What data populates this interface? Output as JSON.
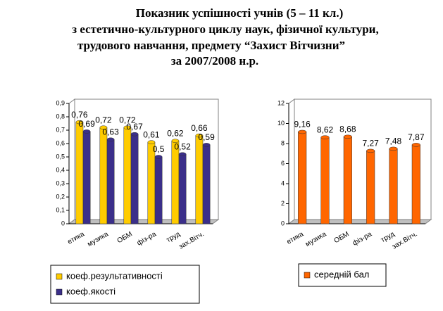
{
  "title": [
    "Показник успішності учнів (5 – 11 кл.)",
    "з естетично-культурного циклу наук, фізичної культури,",
    "трудового навчання, предмету “Захист Вітчизни”",
    "за 2007/2008 н.р."
  ],
  "chart_data": [
    {
      "type": "bar",
      "categories": [
        "етика",
        "музика",
        "ОБМ",
        "фіз-ра",
        "труд",
        "зах.Вітч."
      ],
      "series": [
        {
          "name": "коеф.результативності",
          "color": "#ffcc00",
          "values": [
            0.76,
            0.72,
            0.72,
            0.61,
            0.62,
            0.66
          ],
          "value_labels": [
            "0,76",
            "0,72",
            "0,72",
            "0,61",
            "0,62",
            "0,66"
          ]
        },
        {
          "name": "коеф.якості",
          "color": "#3b2f8a",
          "values": [
            0.69,
            0.63,
            0.67,
            0.5,
            0.52,
            0.59
          ],
          "value_labels": [
            "0,69",
            "0,63",
            "0,67",
            "0,5",
            "0,52",
            "0,59"
          ]
        }
      ],
      "ylim": [
        0,
        0.9
      ],
      "yticks": [
        0,
        {
          "value": 0.1,
          "label": "0,1"
        },
        {
          "value": 0.2,
          "label": "0,2"
        },
        {
          "value": 0.3,
          "label": "0,3"
        },
        {
          "value": 0.4,
          "label": "0,4"
        },
        {
          "value": 0.5,
          "label": "0,5"
        },
        {
          "value": 0.6,
          "label": "0,6"
        },
        {
          "value": 0.7,
          "label": "0,7"
        },
        {
          "value": 0.8,
          "label": "0,8"
        },
        {
          "value": 0.9,
          "label": "0,9"
        }
      ],
      "grid": false
    },
    {
      "type": "bar",
      "categories": [
        "етика",
        "музика",
        "ОБМ",
        "фіз-ра",
        "труд",
        "зах.Вітч."
      ],
      "series": [
        {
          "name": "середній бал",
          "color": "#ff6600",
          "values": [
            9.16,
            8.62,
            8.68,
            7.27,
            7.48,
            7.87
          ],
          "value_labels": [
            "9,16",
            "8,62",
            "8,68",
            "7,27",
            "7,48",
            "7,87"
          ]
        }
      ],
      "ylim": [
        0,
        12
      ],
      "yticks": [
        0,
        2,
        4,
        6,
        8,
        10,
        12
      ],
      "grid": false
    }
  ]
}
